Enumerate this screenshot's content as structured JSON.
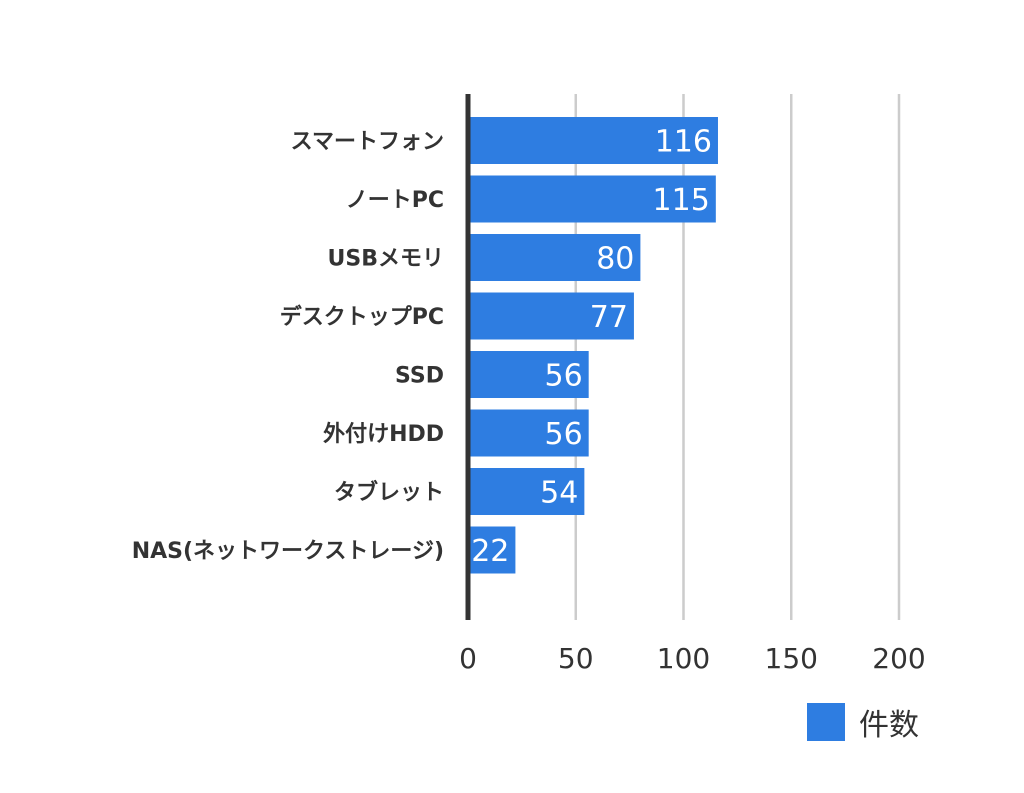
{
  "chart_data": {
    "type": "bar",
    "orientation": "horizontal",
    "categories": [
      "スマートフォン",
      "ノートPC",
      "USBメモリ",
      "デスクトップPC",
      "SSD",
      "外付けHDD",
      "タブレット",
      "NAS(ネットワークストレージ)"
    ],
    "series": [
      {
        "name": "件数",
        "values": [
          116,
          115,
          80,
          77,
          56,
          56,
          54,
          22
        ]
      }
    ],
    "data_labels": [
      116,
      115,
      80,
      77,
      56,
      56,
      54,
      22
    ],
    "xlim": [
      0,
      200
    ],
    "xticks": [
      0,
      50,
      100,
      150,
      200
    ],
    "grid": true,
    "legend": "bottom-right",
    "colors": {
      "bar": "#2e7de1",
      "grid": "#cccccc",
      "axis": "#333333"
    }
  },
  "legend": {
    "label": "件数"
  }
}
